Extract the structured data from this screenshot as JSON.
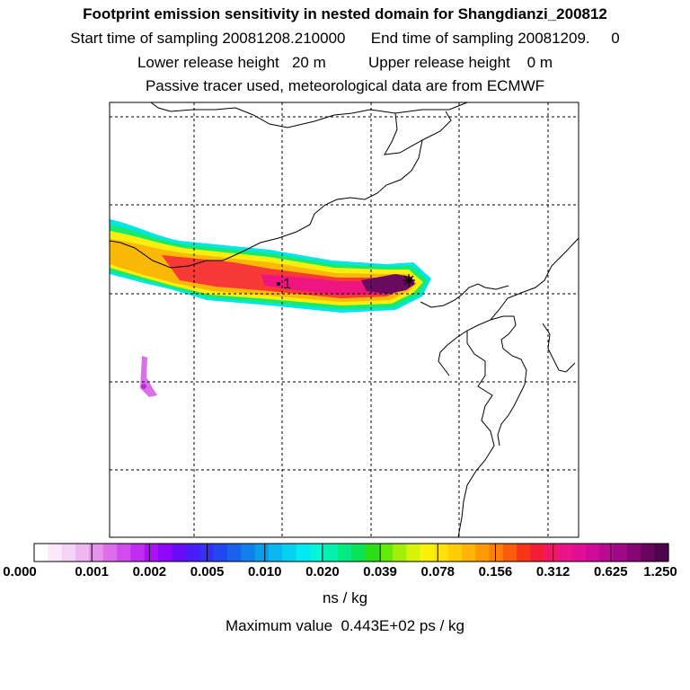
{
  "header": {
    "title": "Footprint emission sensitivity in nested domain for Shangdianzi_200812",
    "sampling_line": "Start time of sampling 20081208.210000      End time of sampling 20081209.     0",
    "height_line": "Lower release height   20 m          Upper release height    0 m",
    "tracer_line": "Passive tracer used, meteorological data are from ECMWF"
  },
  "map": {
    "receptor_label": "1",
    "features": [
      "coastline",
      "footprint-plume",
      "grid-lines",
      "receptor-marker",
      "station-star"
    ]
  },
  "color_scale": {
    "labels": [
      "0.000",
      "0.001",
      "0.002",
      "0.005",
      "0.010",
      "0.020",
      "0.039",
      "0.078",
      "0.156",
      "0.312",
      "0.625",
      "1.250"
    ],
    "colors": [
      "#ffffff",
      "#fbe9fb",
      "#f6d2f6",
      "#efb6f0",
      "#e691ec",
      "#dc6ee9",
      "#d04cec",
      "#c12df0",
      "#ab11f5",
      "#8f07f8",
      "#6b0cf7",
      "#4b1cf5",
      "#3530f3",
      "#2347f1",
      "#1962ee",
      "#117fec",
      "#0b9cec",
      "#08b8ee",
      "#06d2f0",
      "#03eaf1",
      "#05f5d8",
      "#04f1ad",
      "#03eb82",
      "#0ae355",
      "#2adf17",
      "#65e80c",
      "#a2ef0a",
      "#d5f40a",
      "#f7f30a",
      "#fce10a",
      "#fdcd08",
      "#fdb507",
      "#fc9b06",
      "#fb7f08",
      "#fa5b0c",
      "#f73417",
      "#f21c39",
      "#ef1766",
      "#ea138a",
      "#e10f98",
      "#cf0b98",
      "#b90991",
      "#a00885",
      "#850674",
      "#680561",
      "#4e044d"
    ],
    "units": "ns / kg"
  },
  "footer": {
    "max_value": "Maximum value  0.443E+02 ps / kg"
  }
}
